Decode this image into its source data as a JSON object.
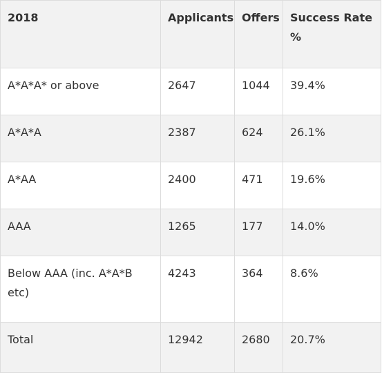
{
  "table": {
    "headers": [
      "2018",
      "Applicants",
      "Offers",
      "Success Rate %"
    ],
    "rows": [
      [
        "A*A*A* or above",
        "2647",
        "1044",
        "39.4%"
      ],
      [
        "A*A*A",
        "2387",
        "624",
        "26.1%"
      ],
      [
        "A*AA",
        "2400",
        "471",
        "19.6%"
      ],
      [
        "AAA",
        "1265",
        "177",
        "14.0%"
      ],
      [
        "Below AAA (inc. A*A*B etc)",
        "4243",
        "364",
        "8.6%"
      ],
      [
        "Total",
        "12942",
        "2680",
        "20.7%"
      ]
    ]
  }
}
